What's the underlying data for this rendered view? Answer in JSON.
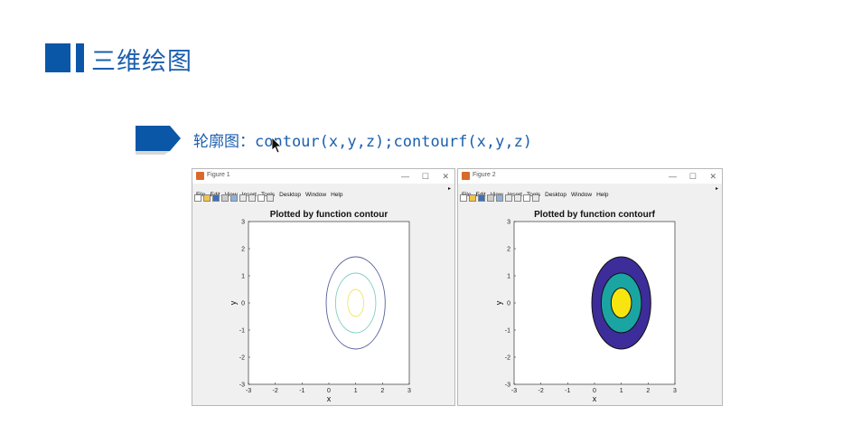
{
  "slide": {
    "title": "三维绘图",
    "subtitle_label": "轮廓图：",
    "subtitle_code": "contour(x,y,z);contourf(x,y,z)"
  },
  "figures": [
    {
      "window_title": "Figure 1",
      "menu": [
        "File",
        "Edit",
        "View",
        "Insert",
        "Tools",
        "Desktop",
        "Window",
        "Help"
      ],
      "window_controls": [
        "—",
        "☐",
        "✕"
      ],
      "chart_data": {
        "type": "contour",
        "title": "Plotted by function contour",
        "xlabel": "x",
        "ylabel": "y",
        "xlim": [
          -3,
          3
        ],
        "ylim": [
          -3,
          3
        ],
        "xticks": [
          -3,
          -2,
          -1,
          0,
          1,
          2,
          3
        ],
        "yticks": [
          -3,
          -2,
          -1,
          0,
          1,
          2,
          3
        ],
        "filled": false,
        "levels": [
          {
            "center": [
              1,
              0
            ],
            "rx": 0.3,
            "ry": 0.5,
            "color": "#f2e56a"
          },
          {
            "center": [
              1,
              0
            ],
            "rx": 0.75,
            "ry": 1.1,
            "color": "#7fcfc2"
          },
          {
            "center": [
              1,
              0
            ],
            "rx": 1.1,
            "ry": 1.7,
            "color": "#5a5f99"
          }
        ]
      }
    },
    {
      "window_title": "Figure 2",
      "menu": [
        "File",
        "Edit",
        "View",
        "Insert",
        "Tools",
        "Desktop",
        "Window",
        "Help"
      ],
      "window_controls": [
        "—",
        "☐",
        "✕"
      ],
      "chart_data": {
        "type": "contourf",
        "title": "Plotted by function contourf",
        "xlabel": "x",
        "ylabel": "y",
        "xlim": [
          -3,
          3
        ],
        "ylim": [
          -3,
          3
        ],
        "xticks": [
          -3,
          -2,
          -1,
          0,
          1,
          2,
          3
        ],
        "yticks": [
          -3,
          -2,
          -1,
          0,
          1,
          2,
          3
        ],
        "filled": true,
        "levels": [
          {
            "center": [
              1,
              0
            ],
            "rx": 1.1,
            "ry": 1.7,
            "color": "#3d2d9a"
          },
          {
            "center": [
              1,
              0
            ],
            "rx": 0.75,
            "ry": 1.1,
            "color": "#1aa5a3"
          },
          {
            "center": [
              1,
              0
            ],
            "rx": 0.38,
            "ry": 0.55,
            "color": "#f8e40f"
          }
        ]
      }
    }
  ],
  "colors": {
    "accent": "#0a57a8",
    "title_text": "#1b5fae"
  }
}
